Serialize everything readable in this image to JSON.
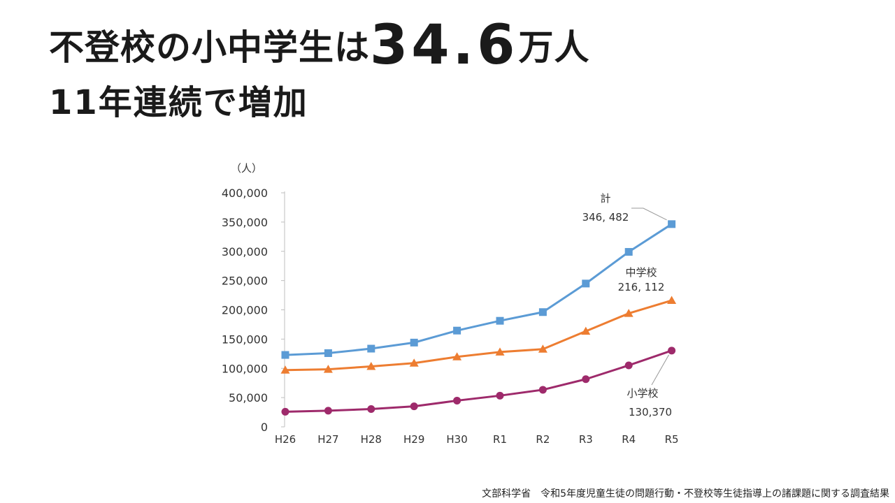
{
  "header": {
    "line1_pre": "不登校の小中学生は",
    "line1_num": "34.6",
    "line1_post": "万人",
    "line2": "11年連続で増加"
  },
  "source": "文部科学省　令和5年度児童生徒の問題行動・不登校等生徒指導上の諸課題に関する調査結果",
  "chart_data": {
    "type": "line",
    "unit_label": "（人）",
    "categories": [
      "H26",
      "H27",
      "H28",
      "H29",
      "H30",
      "R1",
      "R2",
      "R3",
      "R4",
      "R5"
    ],
    "ylim": [
      0,
      400000
    ],
    "yticks": [
      "0",
      "50,000",
      "100,000",
      "150,000",
      "200,000",
      "250,000",
      "300,000",
      "350,000",
      "400,000"
    ],
    "grid": false,
    "series": [
      {
        "name": "計",
        "marker": "square",
        "color": "#5b9bd5",
        "values": [
          122897,
          125991,
          133683,
          144031,
          164528,
          181272,
          196127,
          244940,
          299048,
          346482
        ],
        "end_label": "346, 482"
      },
      {
        "name": "中学校",
        "marker": "triangle",
        "color": "#ed7d31",
        "values": [
          97033,
          98408,
          103235,
          108999,
          119687,
          127922,
          132777,
          163442,
          193936,
          216112
        ],
        "end_label": "216, 112"
      },
      {
        "name": "小学校",
        "marker": "circle",
        "color": "#9e2a6b",
        "values": [
          25864,
          27583,
          30448,
          35032,
          44841,
          53350,
          63350,
          81498,
          105112,
          130370
        ],
        "end_label": "130,370"
      }
    ]
  }
}
